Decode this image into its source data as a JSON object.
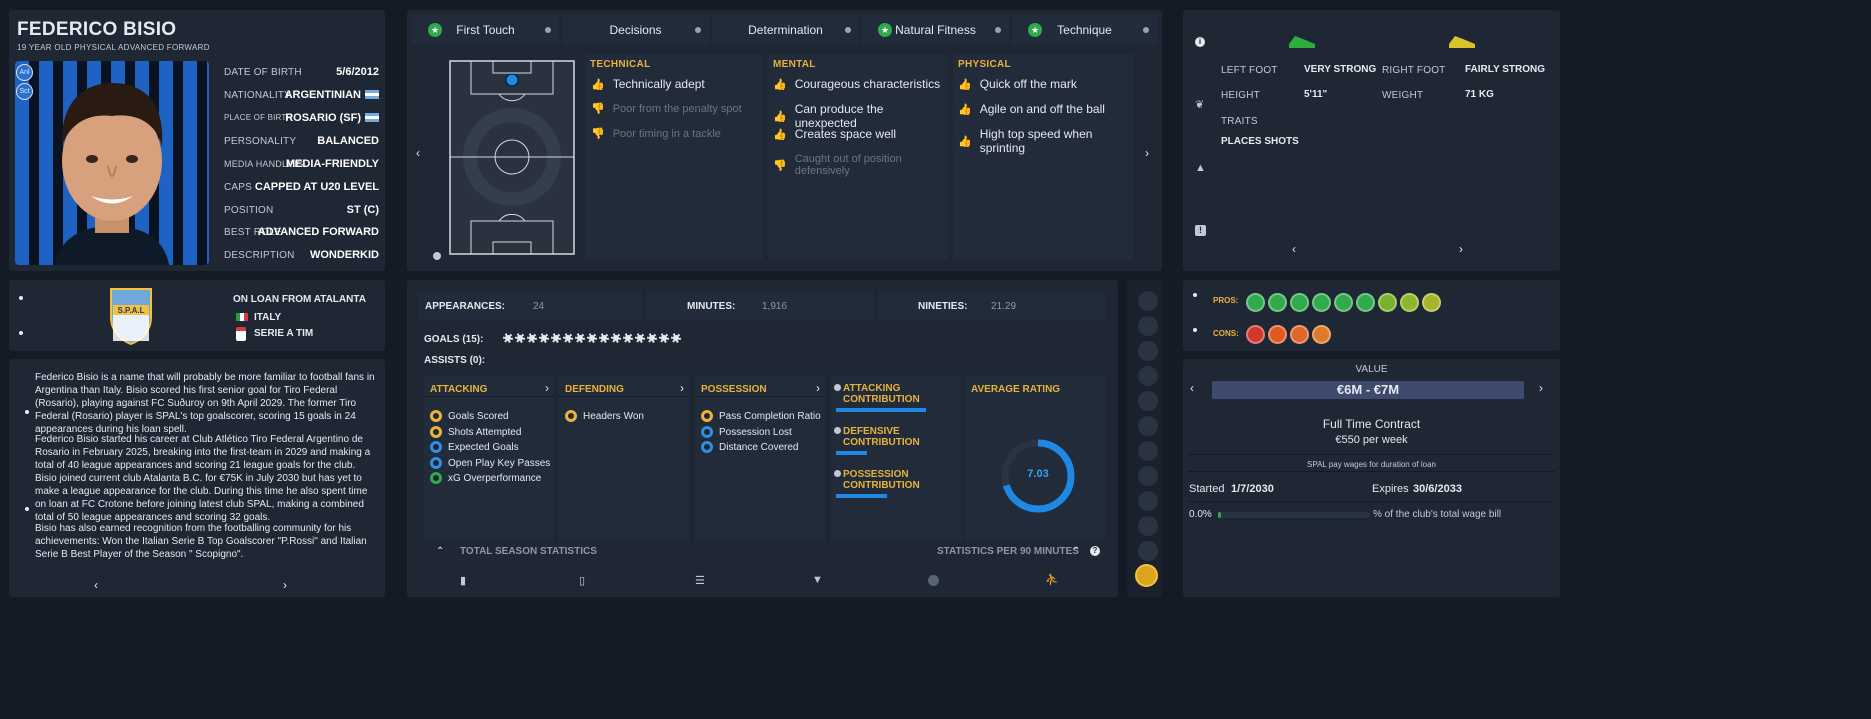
{
  "profile": {
    "name": "FEDERICO BISIO",
    "subtitle": "19 YEAR OLD PHYSICAL ADVANCED FORWARD",
    "chips": [
      "Anl",
      "Sct"
    ],
    "fields": [
      {
        "label": "DATE OF BIRTH",
        "value": "5/6/2012"
      },
      {
        "label": "NATIONALITY",
        "value": "ARGENTINIAN"
      },
      {
        "label": "PLACE OF BIRTH",
        "value": "ROSARIO (SF)"
      },
      {
        "label": "PERSONALITY",
        "value": "BALANCED"
      },
      {
        "label": "MEDIA HANDLING",
        "value": "MEDIA-FRIENDLY"
      },
      {
        "label": "CAPS",
        "value": "CAPPED AT U20 LEVEL"
      },
      {
        "label": "POSITION",
        "value": "ST (C)"
      },
      {
        "label": "BEST ROLE",
        "value": "ADVANCED FORWARD"
      },
      {
        "label": "DESCRIPTION",
        "value": "WONDERKID"
      }
    ]
  },
  "club": {
    "loan": "ON LOAN FROM ATALANTA",
    "country": "ITALY",
    "league": "SERIE A TIM",
    "badge_text": "S.P.A.L",
    "badge_color": "#6fa8dc"
  },
  "bio": {
    "paragraphs": [
      "Federico Bisio is a name that will probably be more familiar to football fans in Argentina than Italy. Bisio scored his first senior goal for Tiro Federal (Rosario), playing against FC Suðuroy on 9th April 2029. The former Tiro Federal (Rosario) player is SPAL's top goalscorer, scoring 15 goals in 24 appearances during his loan spell.",
      "Federico Bisio started his career at Club Atlético Tiro Federal Argentino de Rosario in February 2025, breaking into the first-team in 2029 and making a total of 40 league appearances and scoring 21 league goals for the club. Bisio joined current club Atalanta B.C. for €75K in July 2030 but has yet to make a league appearance for the club. During this time he also spent time on loan at FC Crotone before joining latest club SPAL, making a combined total of 50 league appearances and scoring 32 goals.",
      "Bisio has also earned recognition from the footballing community for his achievements: Won the Italian Serie B Top Goalscorer \"P.Rossi\" and Italian Serie B Best Player of the Season \" Scopigno\"."
    ]
  },
  "tabs": [
    {
      "label": "First Touch",
      "starred": true
    },
    {
      "label": "Decisions",
      "starred": false
    },
    {
      "label": "Determination",
      "starred": false
    },
    {
      "label": "Natural Fitness",
      "starred": true
    },
    {
      "label": "Technique",
      "starred": true
    }
  ],
  "attributes": {
    "technical": {
      "title": "TECHNICAL",
      "items": [
        {
          "text": "Technically adept",
          "positive": true
        },
        {
          "text": "Poor from the penalty spot",
          "positive": false
        },
        {
          "text": "Poor timing in a tackle",
          "positive": false
        }
      ]
    },
    "mental": {
      "title": "MENTAL",
      "items": [
        {
          "text": "Courageous characteristics",
          "positive": true
        },
        {
          "text": "Can produce the unexpected",
          "positive": true
        },
        {
          "text": "Creates space well",
          "positive": true
        },
        {
          "text": "Caught out of position defensively",
          "positive": false
        }
      ]
    },
    "physical": {
      "title": "PHYSICAL",
      "items": [
        {
          "text": "Quick off the mark",
          "positive": true
        },
        {
          "text": "Agile on and off the ball",
          "positive": true
        },
        {
          "text": "High top speed when sprinting",
          "positive": true
        }
      ]
    }
  },
  "physical_info": {
    "left_foot_label": "LEFT FOOT",
    "left_foot": "VERY STRONG",
    "right_foot_label": "RIGHT FOOT",
    "right_foot": "FAIRLY STRONG",
    "height_label": "HEIGHT",
    "height": "5'11\"",
    "weight_label": "WEIGHT",
    "weight": "71 KG",
    "traits_label": "TRAITS",
    "traits": "PLACES SHOTS",
    "left_boot_color": "#2fae3f",
    "right_boot_color": "#d8c12b"
  },
  "stats": {
    "appearances_label": "APPEARANCES:",
    "appearances": "24",
    "minutes_label": "MINUTES:",
    "minutes": "1,916",
    "nineties_label": "NINETIES:",
    "nineties": "21.29",
    "goals_label": "GOALS (15):",
    "goals_count": 15,
    "assists_label": "ASSISTS (0):",
    "attacking": {
      "title": "ATTACKING",
      "items": [
        {
          "text": "Goals Scored",
          "color": "#e8b23c"
        },
        {
          "text": "Shots Attempted",
          "color": "#e8b23c"
        },
        {
          "text": "Expected Goals",
          "color": "#2f8fe0"
        },
        {
          "text": "Open Play Key Passes",
          "color": "#2f8fe0"
        },
        {
          "text": "xG Overperformance",
          "color": "#2faa4c"
        }
      ]
    },
    "defending": {
      "title": "DEFENDING",
      "items": [
        {
          "text": "Headers Won",
          "color": "#e8b23c"
        }
      ]
    },
    "possession": {
      "title": "POSSESSION",
      "items": [
        {
          "text": "Pass Completion Ratio",
          "color": "#e8b23c"
        },
        {
          "text": "Possession Lost",
          "color": "#2f8fe0"
        },
        {
          "text": "Distance Covered",
          "color": "#2f8fe0"
        }
      ]
    },
    "contributions": [
      {
        "label": "ATTACKING CONTRIBUTION",
        "fill": 0.76
      },
      {
        "label": "DEFENSIVE CONTRIBUTION",
        "fill": 0.26
      },
      {
        "label": "POSSESSION CONTRIBUTION",
        "fill": 0.43
      }
    ],
    "avg_rating_label": "AVERAGE RATING",
    "avg_rating": "7.03",
    "avg_rating_fraction": 0.703,
    "total_label": "TOTAL SEASON STATISTICS",
    "per90_label": "STATISTICS PER 90 MINUTES"
  },
  "pros_cons": {
    "pros_label": "PROS:",
    "cons_label": "CONS:",
    "pros_colors": [
      "#2faa4c",
      "#2faa4c",
      "#2faa4c",
      "#2faa4c",
      "#2faa4c",
      "#2faa4c",
      "#7ab12b",
      "#8db82a",
      "#a8b42a"
    ],
    "cons_colors": [
      "#d13a2b",
      "#e05a22",
      "#e0662a",
      "#e07a2a"
    ]
  },
  "contract": {
    "value_label": "VALUE",
    "value": "€6M - €7M",
    "type": "Full Time Contract",
    "wage": "€550 per week",
    "wage_note": "SPAL pay wages for duration of loan",
    "started_label": "Started",
    "started": "1/7/2030",
    "expires_label": "Expires",
    "expires": "30/6/2033",
    "wage_pct": "0.0%",
    "wage_bill_text": "% of the club's total wage bill",
    "wage_fraction": 0.01
  }
}
